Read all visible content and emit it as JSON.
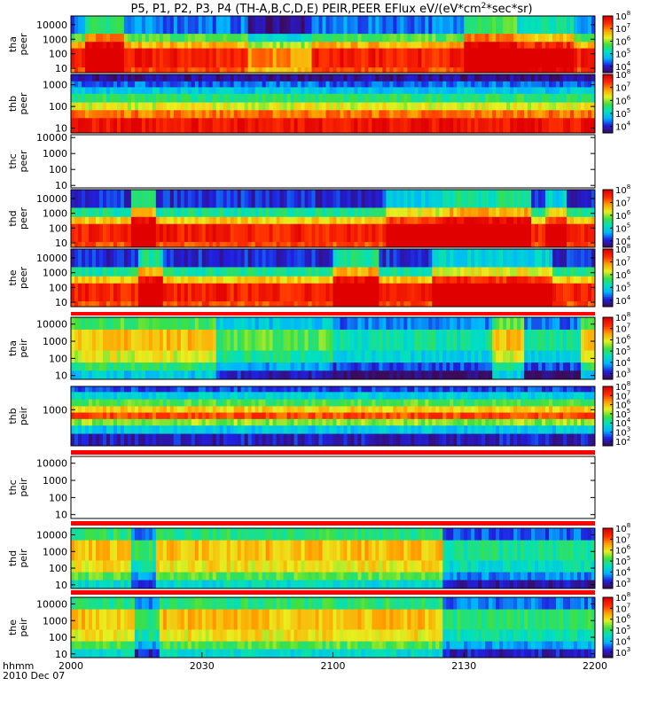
{
  "title": {
    "main": "P5, P1, P2, P3, P4 (TH-A,B,C,D,E) PEIR,PEER EFlux eV/(eV*cm",
    "sup": "2",
    "tail": "*sec*sr)"
  },
  "time_axis": {
    "row1_label": "hhmm",
    "row2_label": "2010 Dec 07",
    "ticks": [
      "2000",
      "2030",
      "2100",
      "2130",
      "2200"
    ],
    "range_minutes": [
      0,
      120
    ]
  },
  "colors": {
    "colormap": [
      "#3c0a5a",
      "#2020e0",
      "#00b4ff",
      "#00e0c0",
      "#40e040",
      "#e8f020",
      "#ffa000",
      "#ff3000",
      "#e00000"
    ],
    "no_data_bar": "#ff0000"
  },
  "chart_data": [
    {
      "type": "heatmap",
      "probe": "tha",
      "species": "peer",
      "label_probe": "tha",
      "label_species": "peer",
      "has_data": true,
      "yscale": "log",
      "ylim": [
        5,
        40000
      ],
      "yticks": [
        {
          "v": 10,
          "t": "10"
        },
        {
          "v": 100,
          "t": "100"
        },
        {
          "v": 1000,
          "t": "1000"
        },
        {
          "v": 10000,
          "t": "10000"
        }
      ],
      "colorbar": {
        "type": "log",
        "ticks": [
          {
            "e": 4,
            "t": "10"
          },
          {
            "e": 5,
            "t": "10"
          },
          {
            "e": 6,
            "t": "10"
          },
          {
            "e": 7,
            "t": "10"
          },
          {
            "e": 8,
            "t": "10"
          }
        ],
        "range_exp": [
          3.5,
          8
        ]
      },
      "bands": [
        {
          "from": 5,
          "to": 12,
          "level": 0.85
        },
        {
          "from": 12,
          "to": 250,
          "level": 0.92
        },
        {
          "from": 250,
          "to": 700,
          "level": 0.72
        },
        {
          "from": 700,
          "to": 2500,
          "level": 0.5
        },
        {
          "from": 2500,
          "to": 40000,
          "level": 0.2
        }
      ],
      "events": [
        {
          "t0": 3,
          "t1": 12,
          "d": 0.28
        },
        {
          "t0": 40,
          "t1": 55,
          "d": -0.15
        },
        {
          "t0": 90,
          "t1": 102,
          "d": 0.3
        },
        {
          "t0": 102,
          "t1": 115,
          "d": 0.18
        }
      ]
    },
    {
      "type": "heatmap",
      "probe": "thb",
      "species": "peer",
      "label_probe": "thb",
      "label_species": "peer",
      "has_data": true,
      "yscale": "log",
      "ylim": [
        6,
        3000
      ],
      "yticks": [
        {
          "v": 10,
          "t": "10"
        },
        {
          "v": 100,
          "t": "100"
        },
        {
          "v": 1000,
          "t": "1000"
        }
      ],
      "colorbar": {
        "type": "log",
        "ticks": [
          {
            "e": 4,
            "t": "10"
          },
          {
            "e": 5,
            "t": "10"
          },
          {
            "e": 6,
            "t": "10"
          },
          {
            "e": 7,
            "t": "10"
          },
          {
            "e": 8,
            "t": "10"
          }
        ],
        "range_exp": [
          3.5,
          8
        ]
      },
      "bands": [
        {
          "from": 6,
          "to": 30,
          "level": 0.95
        },
        {
          "from": 30,
          "to": 70,
          "level": 0.8
        },
        {
          "from": 70,
          "to": 160,
          "level": 0.62
        },
        {
          "from": 160,
          "to": 400,
          "level": 0.45
        },
        {
          "from": 400,
          "to": 800,
          "level": 0.3
        },
        {
          "from": 800,
          "to": 1500,
          "level": 0.18
        },
        {
          "from": 1500,
          "to": 3000,
          "level": 0.05
        }
      ],
      "events": []
    },
    {
      "type": "heatmap",
      "probe": "thc",
      "species": "peer",
      "label_probe": "thc",
      "label_species": "peer",
      "has_data": false,
      "yscale": "log",
      "ylim": [
        7,
        15000
      ],
      "yticks": [
        {
          "v": 10,
          "t": "10"
        },
        {
          "v": 100,
          "t": "100"
        },
        {
          "v": 1000,
          "t": "1000"
        },
        {
          "v": 10000,
          "t": "10000"
        }
      ],
      "colorbar": null,
      "bands": [],
      "events": []
    },
    {
      "type": "heatmap",
      "probe": "thd",
      "species": "peer",
      "label_probe": "thd",
      "label_species": "peer",
      "has_data": true,
      "yscale": "log",
      "ylim": [
        5,
        40000
      ],
      "yticks": [
        {
          "v": 10,
          "t": "10"
        },
        {
          "v": 100,
          "t": "100"
        },
        {
          "v": 1000,
          "t": "1000"
        },
        {
          "v": 10000,
          "t": "10000"
        }
      ],
      "colorbar": {
        "type": "log",
        "ticks": [
          {
            "e": 4,
            "t": "10"
          },
          {
            "e": 5,
            "t": "10"
          },
          {
            "e": 6,
            "t": "10"
          },
          {
            "e": 7,
            "t": "10"
          },
          {
            "e": 8,
            "t": "10"
          }
        ],
        "range_exp": [
          3.5,
          8
        ]
      },
      "bands": [
        {
          "from": 5,
          "to": 12,
          "level": 0.85
        },
        {
          "from": 12,
          "to": 200,
          "level": 0.92
        },
        {
          "from": 200,
          "to": 600,
          "level": 0.68
        },
        {
          "from": 600,
          "to": 2500,
          "level": 0.42
        },
        {
          "from": 2500,
          "to": 40000,
          "level": 0.12
        }
      ],
      "events": [
        {
          "t0": 13,
          "t1": 19,
          "d": 0.3
        },
        {
          "t0": 72,
          "t1": 85,
          "d": 0.2
        },
        {
          "t0": 85,
          "t1": 105,
          "d": 0.3
        },
        {
          "t0": 108,
          "t1": 113,
          "d": 0.2
        }
      ]
    },
    {
      "type": "heatmap",
      "probe": "the",
      "species": "peer",
      "label_probe": "the",
      "label_species": "peer",
      "has_data": true,
      "yscale": "log",
      "ylim": [
        5,
        40000
      ],
      "yticks": [
        {
          "v": 10,
          "t": "10"
        },
        {
          "v": 100,
          "t": "100"
        },
        {
          "v": 1000,
          "t": "1000"
        },
        {
          "v": 10000,
          "t": "10000"
        }
      ],
      "colorbar": {
        "type": "log",
        "ticks": [
          {
            "e": 4,
            "t": "10"
          },
          {
            "e": 5,
            "t": "10"
          },
          {
            "e": 6,
            "t": "10"
          },
          {
            "e": 7,
            "t": "10"
          },
          {
            "e": 8,
            "t": "10"
          }
        ],
        "range_exp": [
          3.5,
          8
        ]
      },
      "bands": [
        {
          "from": 5,
          "to": 12,
          "level": 0.85
        },
        {
          "from": 12,
          "to": 200,
          "level": 0.92
        },
        {
          "from": 200,
          "to": 600,
          "level": 0.68
        },
        {
          "from": 600,
          "to": 2500,
          "level": 0.42
        },
        {
          "from": 2500,
          "to": 40000,
          "level": 0.12
        }
      ],
      "events": [
        {
          "t0": 15,
          "t1": 21,
          "d": 0.3
        },
        {
          "t0": 60,
          "t1": 70,
          "d": 0.3
        },
        {
          "t0": 82,
          "t1": 110,
          "d": 0.22
        }
      ]
    },
    {
      "type": "heatmap",
      "probe": "tha",
      "species": "peir",
      "label_probe": "tha",
      "label_species": "peir",
      "has_data": true,
      "yscale": "log",
      "ylim": [
        6,
        25000
      ],
      "yticks": [
        {
          "v": 10,
          "t": "10"
        },
        {
          "v": 100,
          "t": "100"
        },
        {
          "v": 1000,
          "t": "1000"
        },
        {
          "v": 10000,
          "t": "10000"
        }
      ],
      "colorbar": {
        "type": "log",
        "ticks": [
          {
            "e": 3,
            "t": "10"
          },
          {
            "e": 4,
            "t": "10"
          },
          {
            "e": 5,
            "t": "10"
          },
          {
            "e": 6,
            "t": "10"
          },
          {
            "e": 7,
            "t": "10"
          },
          {
            "e": 8,
            "t": "10"
          }
        ],
        "range_exp": [
          2.5,
          8
        ]
      },
      "bands": [
        {
          "from": 6,
          "to": 20,
          "level": 0.3
        },
        {
          "from": 20,
          "to": 60,
          "level": 0.45
        },
        {
          "from": 60,
          "to": 300,
          "level": 0.62
        },
        {
          "from": 300,
          "to": 5000,
          "level": 0.7
        },
        {
          "from": 5000,
          "to": 25000,
          "level": 0.5
        }
      ],
      "events": [
        {
          "t0": 33,
          "t1": 60,
          "d": -0.2
        },
        {
          "t0": 60,
          "t1": 96,
          "d": -0.3
        },
        {
          "t0": 103,
          "t1": 116,
          "d": -0.3
        }
      ]
    },
    {
      "type": "heatmap",
      "probe": "thb",
      "species": "peir",
      "label_probe": "thb",
      "label_species": "peir",
      "has_data": true,
      "yscale": "log",
      "ylim": [
        40,
        8000
      ],
      "yticks": [
        {
          "v": 1000,
          "t": "1000"
        }
      ],
      "colorbar": {
        "type": "log",
        "ticks": [
          {
            "e": 2,
            "t": "10"
          },
          {
            "e": 3,
            "t": "10"
          },
          {
            "e": 4,
            "t": "10"
          },
          {
            "e": 5,
            "t": "10"
          },
          {
            "e": 6,
            "t": "10"
          },
          {
            "e": 7,
            "t": "10"
          },
          {
            "e": 8,
            "t": "10"
          }
        ],
        "range_exp": [
          1.5,
          8
        ]
      },
      "bands": [
        {
          "from": 40,
          "to": 120,
          "level": 0.1
        },
        {
          "from": 120,
          "to": 250,
          "level": 0.3
        },
        {
          "from": 250,
          "to": 450,
          "level": 0.55
        },
        {
          "from": 450,
          "to": 800,
          "level": 0.85
        },
        {
          "from": 800,
          "to": 1400,
          "level": 0.68
        },
        {
          "from": 1400,
          "to": 2600,
          "level": 0.5
        },
        {
          "from": 2600,
          "to": 5000,
          "level": 0.32
        },
        {
          "from": 5000,
          "to": 8000,
          "level": 0.15
        }
      ],
      "events": []
    },
    {
      "type": "heatmap",
      "probe": "thc",
      "species": "peir",
      "label_probe": "thc",
      "label_species": "peir",
      "has_data": false,
      "yscale": "log",
      "ylim": [
        6,
        25000
      ],
      "yticks": [
        {
          "v": 10,
          "t": "10"
        },
        {
          "v": 100,
          "t": "100"
        },
        {
          "v": 1000,
          "t": "1000"
        },
        {
          "v": 10000,
          "t": "10000"
        }
      ],
      "colorbar": null,
      "bands": [],
      "events": []
    },
    {
      "type": "heatmap",
      "probe": "thd",
      "species": "peir",
      "label_probe": "thd",
      "label_species": "peir",
      "has_data": true,
      "yscale": "log",
      "ylim": [
        6,
        25000
      ],
      "yticks": [
        {
          "v": 10,
          "t": "10"
        },
        {
          "v": 100,
          "t": "100"
        },
        {
          "v": 1000,
          "t": "1000"
        },
        {
          "v": 10000,
          "t": "10000"
        }
      ],
      "colorbar": {
        "type": "log",
        "ticks": [
          {
            "e": 3,
            "t": "10"
          },
          {
            "e": 4,
            "t": "10"
          },
          {
            "e": 5,
            "t": "10"
          },
          {
            "e": 6,
            "t": "10"
          },
          {
            "e": 7,
            "t": "10"
          },
          {
            "e": 8,
            "t": "10"
          }
        ],
        "range_exp": [
          2.5,
          8
        ]
      },
      "bands": [
        {
          "from": 6,
          "to": 20,
          "level": 0.35
        },
        {
          "from": 20,
          "to": 60,
          "level": 0.5
        },
        {
          "from": 60,
          "to": 300,
          "level": 0.65
        },
        {
          "from": 300,
          "to": 5000,
          "level": 0.7
        },
        {
          "from": 5000,
          "to": 25000,
          "level": 0.45
        }
      ],
      "events": [
        {
          "t0": 13,
          "t1": 19,
          "d": -0.25
        },
        {
          "t0": 85,
          "t1": 120,
          "d": -0.28
        }
      ]
    },
    {
      "type": "heatmap",
      "probe": "the",
      "species": "peir",
      "label_probe": "the",
      "label_species": "peir",
      "has_data": true,
      "yscale": "log",
      "ylim": [
        6,
        25000
      ],
      "yticks": [
        {
          "v": 10,
          "t": "10"
        },
        {
          "v": 100,
          "t": "100"
        },
        {
          "v": 1000,
          "t": "1000"
        },
        {
          "v": 10000,
          "t": "10000"
        }
      ],
      "colorbar": {
        "type": "log",
        "ticks": [
          {
            "e": 3,
            "t": "10"
          },
          {
            "e": 4,
            "t": "10"
          },
          {
            "e": 5,
            "t": "10"
          },
          {
            "e": 6,
            "t": "10"
          },
          {
            "e": 7,
            "t": "10"
          },
          {
            "e": 8,
            "t": "10"
          }
        ],
        "range_exp": [
          2.5,
          8
        ]
      },
      "bands": [
        {
          "from": 6,
          "to": 20,
          "level": 0.35
        },
        {
          "from": 20,
          "to": 60,
          "level": 0.5
        },
        {
          "from": 60,
          "to": 300,
          "level": 0.65
        },
        {
          "from": 300,
          "to": 5000,
          "level": 0.7
        },
        {
          "from": 5000,
          "to": 25000,
          "level": 0.45
        }
      ],
      "events": [
        {
          "t0": 14,
          "t1": 20,
          "d": -0.25
        },
        {
          "t0": 85,
          "t1": 120,
          "d": -0.25
        }
      ]
    }
  ]
}
